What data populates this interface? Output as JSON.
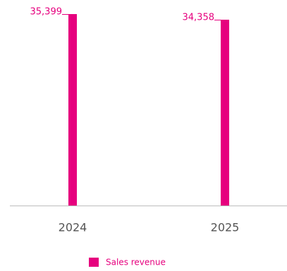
{
  "chart_data": {
    "type": "bar",
    "categories": [
      "2024",
      "2025"
    ],
    "series": [
      {
        "name": "Sales revenue",
        "color": "#e6007e",
        "values": [
          35399,
          34358
        ],
        "value_labels": [
          "35,399",
          "34,358"
        ]
      }
    ]
  }
}
